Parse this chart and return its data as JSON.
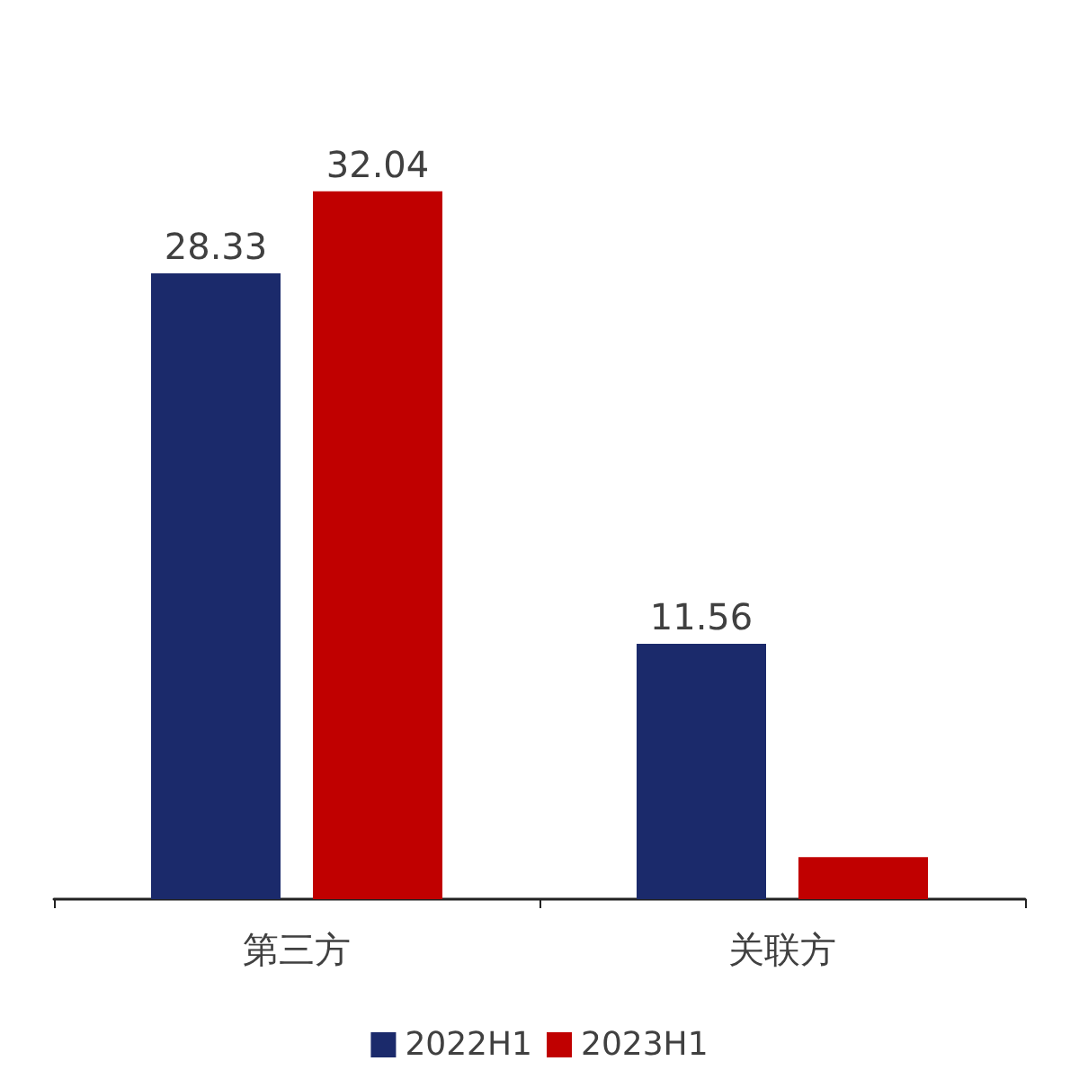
{
  "chart_data": {
    "type": "bar",
    "categories": [
      "第三方",
      "关联方"
    ],
    "series": [
      {
        "name": "2022H1",
        "color": "#1b2a6b",
        "values": [
          28.33,
          11.56
        ],
        "value_labels": [
          "28.33",
          "11.56"
        ]
      },
      {
        "name": "2023H1",
        "color": "#c00000",
        "values": [
          32.04,
          1.9
        ],
        "value_labels": [
          "32.04",
          null
        ]
      }
    ],
    "legend": "bottom"
  }
}
